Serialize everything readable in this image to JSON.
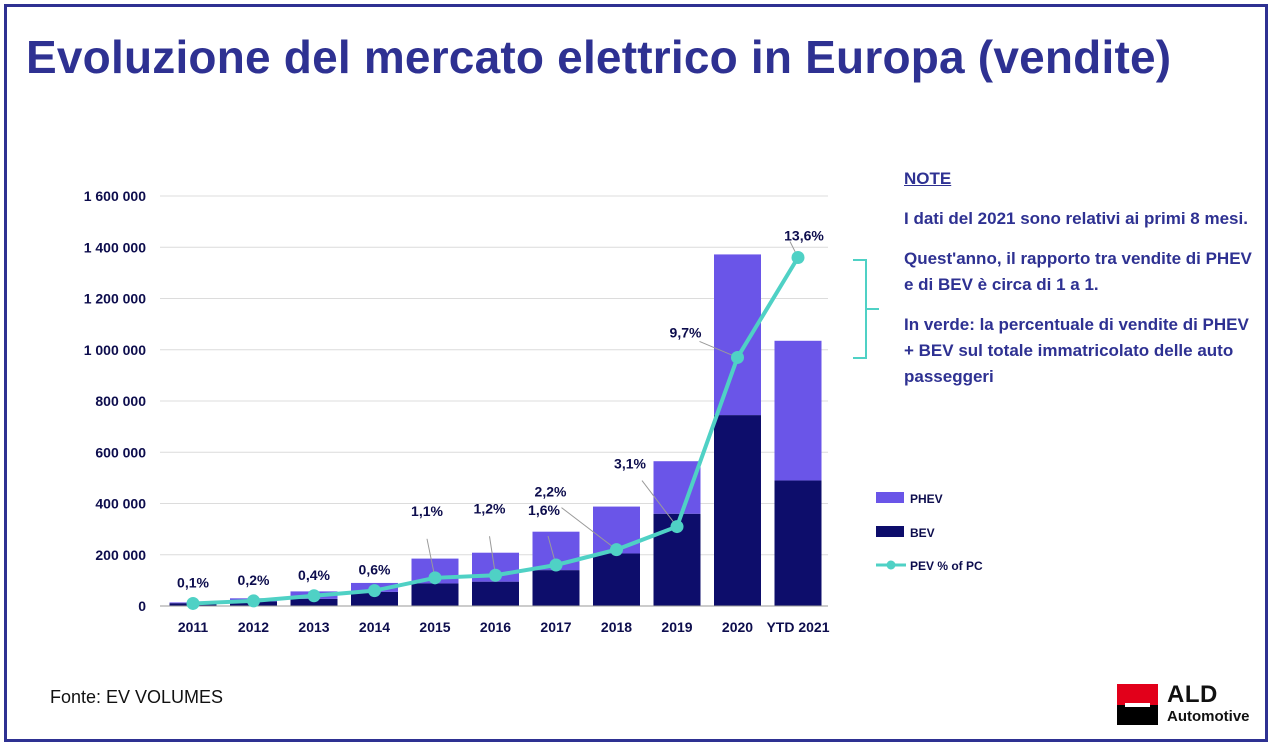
{
  "page": {
    "title": "Evoluzione del mercato elettrico in Europa (vendite)",
    "source": "Fonte: EV VOLUMES"
  },
  "notes": {
    "heading": "NOTE",
    "paragraph_1": "I dati del 2021 sono relativi ai primi 8 mesi.",
    "paragraph_2": "Quest'anno, il rapporto tra vendite di PHEV e di BEV è circa di 1 a 1.",
    "paragraph_3": "In verde: la percentuale di vendite di PHEV + BEV sul totale immatricolato delle auto passeggeri"
  },
  "logo": {
    "name": "ALD",
    "subtitle": "Automotive"
  },
  "colors": {
    "title": "#2e3192",
    "bev": "#0d0d6b",
    "phev": "#6a55e8",
    "pev_line": "#4fd1c5",
    "grid": "#dcdcdc",
    "logo_red": "#e2001a"
  },
  "chart_data": {
    "type": "bar",
    "stacked": true,
    "categories": [
      "2011",
      "2012",
      "2013",
      "2014",
      "2015",
      "2016",
      "2017",
      "2018",
      "2019",
      "2020",
      "YTD 2021"
    ],
    "series": [
      {
        "name": "BEV",
        "color": "#0d0d6b",
        "values": [
          11000,
          18000,
          28000,
          55000,
          88000,
          95000,
          140000,
          205000,
          360000,
          745000,
          490000
        ]
      },
      {
        "name": "PHEV",
        "color": "#6a55e8",
        "values": [
          3000,
          12000,
          29000,
          35000,
          97000,
          113000,
          150000,
          183000,
          205000,
          627000,
          545000
        ]
      }
    ],
    "line": {
      "name": "PEV % of PC",
      "color": "#4fd1c5",
      "values": [
        0.1,
        0.2,
        0.4,
        0.6,
        1.1,
        1.2,
        1.6,
        2.2,
        3.1,
        9.7,
        13.6
      ],
      "labels": [
        "0,1%",
        "0,2%",
        "0,4%",
        "0,6%",
        "1,1%",
        "1,2%",
        "1,6%",
        "2,2%",
        "3,1%",
        "9,7%",
        "13,6%"
      ]
    },
    "y_ticks": [
      0,
      200000,
      400000,
      600000,
      800000,
      1000000,
      1200000,
      1400000,
      1600000
    ],
    "y_tick_labels": [
      "0",
      "200 000",
      "400 000",
      "600 000",
      "800 000",
      "1 000 000",
      "1 200 000",
      "1 400 000",
      "1 600 000"
    ],
    "ylim": [
      0,
      1600000
    ],
    "grid": true,
    "legend": {
      "position": "right",
      "entries": [
        "PHEV",
        "BEV",
        "PEV % of PC"
      ]
    }
  }
}
